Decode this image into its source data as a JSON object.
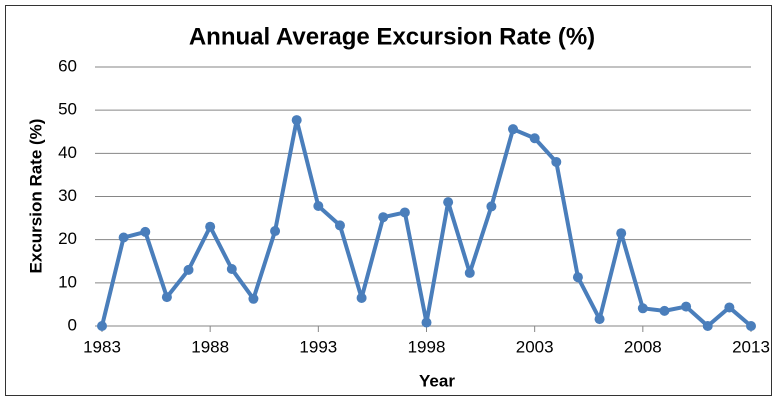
{
  "chart_data": {
    "type": "line",
    "title": "Annual Average Excursion Rate (%)",
    "x_label": "Year",
    "y_label": "Excursion Rate (%)",
    "x": [
      1983,
      1984,
      1985,
      1986,
      1987,
      1988,
      1989,
      1990,
      1991,
      1992,
      1993,
      1994,
      1995,
      1996,
      1997,
      1998,
      1999,
      2000,
      2001,
      2002,
      2003,
      2004,
      2005,
      2006,
      2007,
      2008,
      2009,
      2010,
      2011,
      2012,
      2013
    ],
    "series": [
      {
        "name": "Excursion Rate",
        "color": "#4a7ebb",
        "values": [
          0,
          20.5,
          21.8,
          6.7,
          13,
          23,
          13.2,
          6.3,
          22,
          47.7,
          27.8,
          23.3,
          6.5,
          25.2,
          26.3,
          0.8,
          28.7,
          12.3,
          27.7,
          45.6,
          43.5,
          38,
          11.3,
          1.6,
          21.5,
          4.1,
          3.5,
          4.5,
          0,
          4.3,
          0
        ]
      }
    ],
    "xlim": [
      1983,
      2013
    ],
    "xticks": [
      1983,
      1988,
      1993,
      1998,
      2003,
      2008,
      2013
    ],
    "ylim": [
      0,
      60
    ],
    "yticks": [
      0,
      10,
      20,
      30,
      40,
      50,
      60
    ],
    "grid": true
  }
}
